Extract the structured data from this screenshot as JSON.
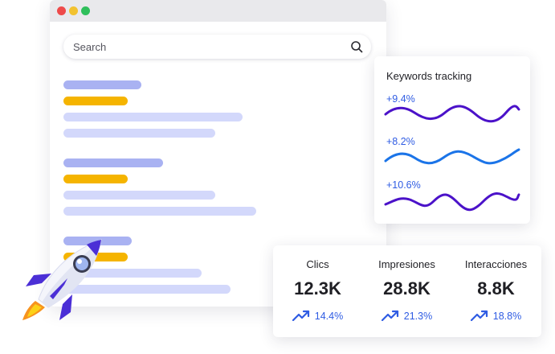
{
  "browser": {
    "search": {
      "placeholder": "Search",
      "icon": "search-icon"
    }
  },
  "keywords": {
    "title": "Keywords tracking",
    "items": [
      {
        "change": "+9.4%",
        "color": "#4b12c9"
      },
      {
        "change": "+8.2%",
        "color": "#1b74e8"
      },
      {
        "change": "+10.6%",
        "color": "#4b12c9"
      }
    ]
  },
  "stats": [
    {
      "label": "Clics",
      "value": "12.3K",
      "change": "14.4%",
      "icon": "trending-up-icon"
    },
    {
      "label": "Impresiones",
      "value": "28.8K",
      "change": "21.3%",
      "icon": "trending-up-icon"
    },
    {
      "label": "Interacciones",
      "value": "8.8K",
      "change": "18.8%",
      "icon": "trending-up-icon"
    }
  ],
  "colors": {
    "accent": "#2f5ce3",
    "tag": "#f5b400",
    "title_bar": "#a9b2f2",
    "text_line": "#d3d8fb"
  }
}
